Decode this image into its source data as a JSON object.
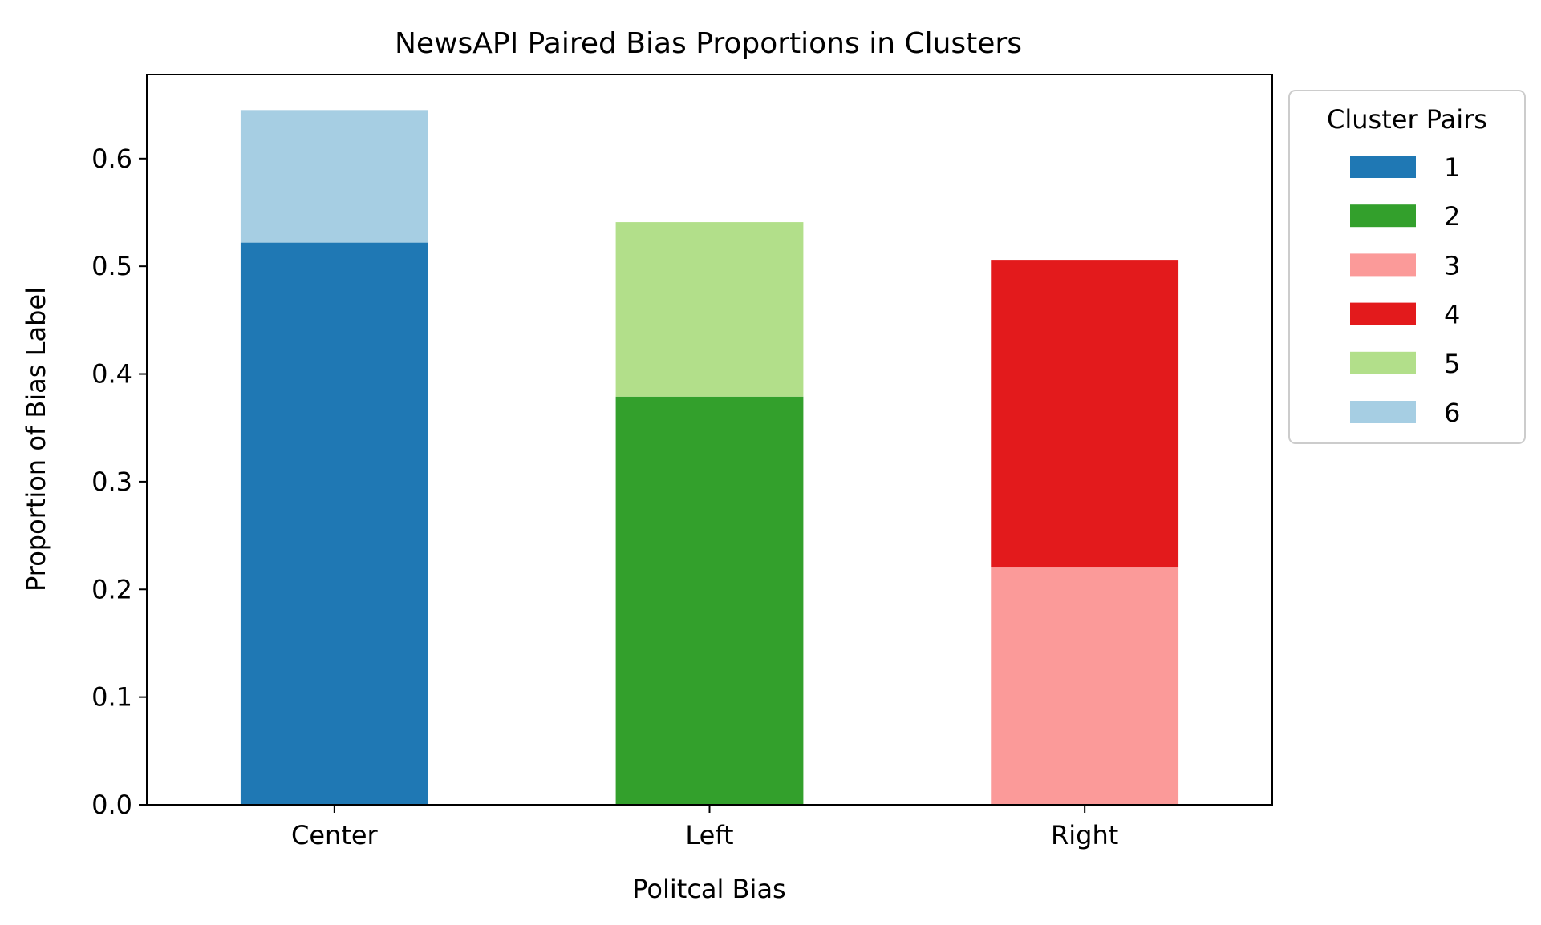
{
  "chart_data": {
    "type": "bar",
    "stacked": true,
    "title": "NewsAPI Paired Bias Proportions in Clusters",
    "xlabel": "Politcal Bias",
    "ylabel": "Proportion of Bias Label",
    "categories": [
      "Center",
      "Left",
      "Right"
    ],
    "ylim": [
      0,
      0.678
    ],
    "yticks": [
      0.0,
      0.1,
      0.2,
      0.3,
      0.4,
      0.5,
      0.6
    ],
    "ytick_labels": [
      "0.0",
      "0.1",
      "0.2",
      "0.3",
      "0.4",
      "0.5",
      "0.6"
    ],
    "grid": false,
    "legend": {
      "title": "Cluster Pairs",
      "placement": "outside upper right"
    },
    "series": [
      {
        "name": "1",
        "color": "#1f78b4",
        "values": [
          0.522,
          0,
          0
        ]
      },
      {
        "name": "2",
        "color": "#33a02c",
        "values": [
          0,
          0.379,
          0
        ]
      },
      {
        "name": "3",
        "color": "#fb9a99",
        "values": [
          0,
          0,
          0.221
        ]
      },
      {
        "name": "4",
        "color": "#e31a1c",
        "values": [
          0,
          0,
          0.285
        ]
      },
      {
        "name": "5",
        "color": "#b2df8a",
        "values": [
          0,
          0.162,
          0
        ]
      },
      {
        "name": "6",
        "color": "#a6cee3",
        "values": [
          0.123,
          0,
          0
        ]
      }
    ]
  }
}
